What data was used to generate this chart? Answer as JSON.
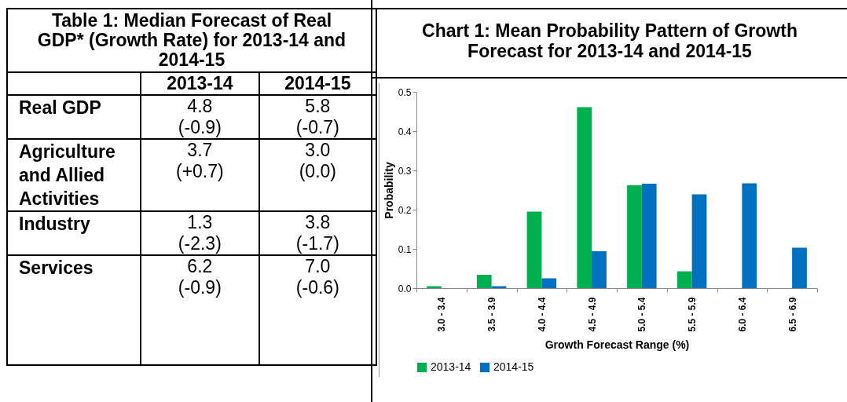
{
  "chart_data": [
    {
      "type": "other",
      "title": "Table 1: Median Forecast of Real GDP* (Growth Rate) for 2013-14 and 2014-15",
      "categories": [
        "2013-14",
        "2014-15"
      ],
      "y_categories": [
        "Real GDP",
        "Agriculture and Allied Activities",
        "Industry",
        "Services"
      ],
      "cell_labels": [
        [
          "4.8\n(-0.9)",
          "5.8\n(-0.7)"
        ],
        [
          "3.7\n(+0.7)",
          "3.0\n(0.0)"
        ],
        [
          "1.3\n(-2.3)",
          "3.8\n(-1.7)"
        ],
        [
          "6.2\n(-0.9)",
          "7.0\n(-0.6)"
        ]
      ]
    },
    {
      "type": "bar",
      "title": "Chart 1: Mean Probability Pattern of Growth Forecast for 2013-14 and 2014-15",
      "xlabel": "Growth Forecast Range (%)",
      "ylabel": "Probability",
      "categories": [
        "3.0 - 3.4",
        "3.5 - 3.9",
        "4.0 - 4.4",
        "4.5 - 4.9",
        "5.0 - 5.4",
        "5.5 - 5.9",
        "6.0 - 6.4",
        "6.5 - 6.9"
      ],
      "series": [
        {
          "name": "2013-14",
          "color": "#00b050",
          "values": [
            0.005,
            0.034,
            0.195,
            0.461,
            0.262,
            0.043,
            0,
            0
          ]
        },
        {
          "name": "2014-15",
          "color": "#0070c0",
          "values": [
            0,
            0.005,
            0.025,
            0.094,
            0.266,
            0.239,
            0.267,
            0.103
          ]
        }
      ],
      "ylim": [
        0,
        0.5
      ],
      "yticks": [
        {
          "value": 0,
          "label": "0.0"
        },
        0.1,
        0.2,
        0.3,
        0.4,
        0.5
      ],
      "grid": false,
      "legend": "bottom"
    }
  ]
}
